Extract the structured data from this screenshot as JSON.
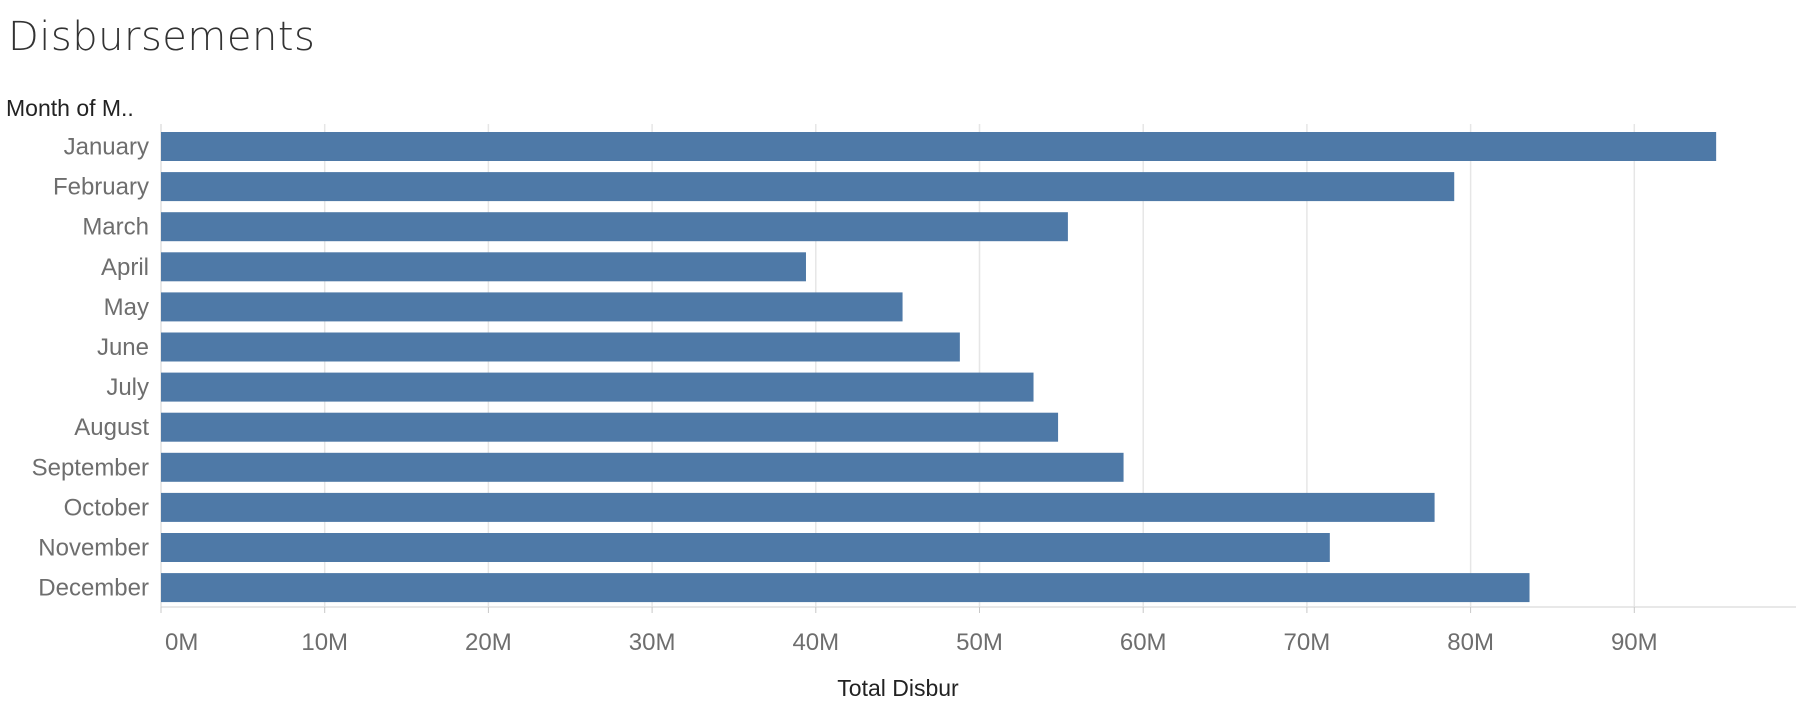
{
  "header": {
    "title": "Disbursements"
  },
  "chart_data": {
    "type": "bar",
    "orientation": "horizontal",
    "title": "Disbursements",
    "row_header": "Month of M..",
    "xlabel": "Total Disbur",
    "ylabel": "",
    "categories": [
      "January",
      "February",
      "March",
      "April",
      "May",
      "June",
      "July",
      "August",
      "September",
      "October",
      "November",
      "December"
    ],
    "values": [
      95.0,
      79.0,
      55.4,
      39.4,
      45.3,
      48.8,
      53.3,
      54.8,
      58.8,
      77.8,
      71.4,
      83.6
    ],
    "value_unit": "M",
    "x_ticks": [
      "0M",
      "10M",
      "20M",
      "30M",
      "40M",
      "50M",
      "60M",
      "70M",
      "80M",
      "90M"
    ],
    "xlim": [
      0,
      99.5
    ],
    "grid": true,
    "bar_color": "#4e79a7",
    "grid_color": "#e6e6e6",
    "tick_label_color": "#6e6e6e"
  }
}
